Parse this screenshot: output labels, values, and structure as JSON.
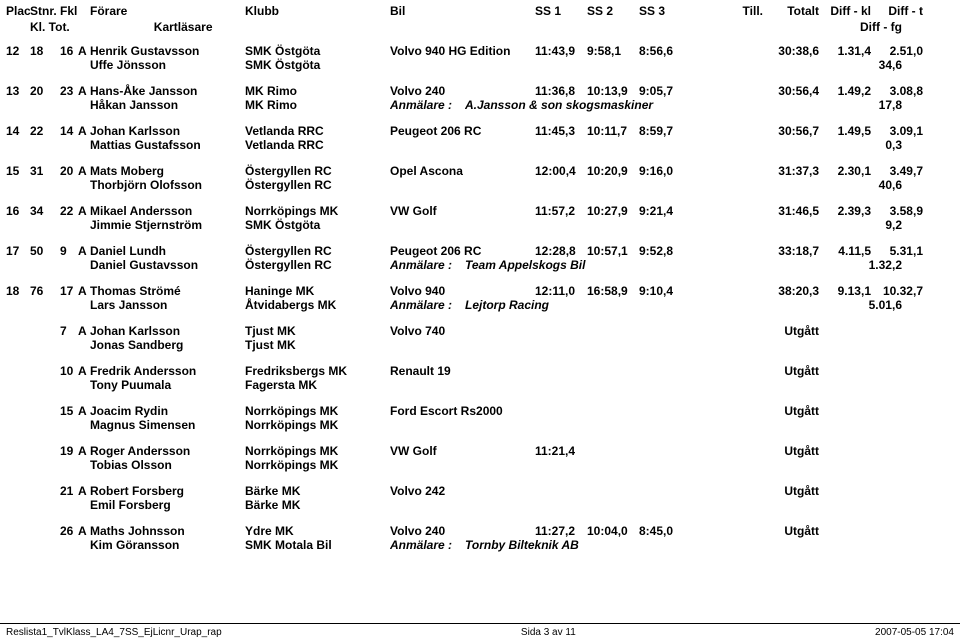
{
  "header": {
    "plac": "Plac.",
    "stnr": "Stnr.",
    "fkl": "Fkl",
    "forare": "Förare",
    "klubb": "Klubb",
    "bil": "Bil",
    "ss1": "SS 1",
    "ss2": "SS 2",
    "ss3": "SS 3",
    "till": "Till.",
    "totalt": "Totalt",
    "diffkl": "Diff - kl",
    "difft": "Diff - t",
    "kltot": "Kl. Tot.",
    "kartlasare": "Kartläsare",
    "difffg": "Diff - fg"
  },
  "rows": [
    {
      "plac": "12",
      "stnr": "18",
      "fkl": "16",
      "klass": "A",
      "forare": "Henrik Gustavsson",
      "klubb": "SMK Östgöta",
      "bil": "Volvo 940 HG Edition",
      "ss1": "11:43,9",
      "ss2": "9:58,1",
      "ss3": "8:56,6",
      "till": "",
      "totalt": "30:38,6",
      "diffkl": "1.31,4",
      "difft": "2.51,0",
      "kartlasare": "Uffe Jönsson",
      "klubb2": "SMK Östgöta",
      "anmalare_lbl": "",
      "anmalare": "",
      "difffg": "34,6"
    },
    {
      "plac": "13",
      "stnr": "20",
      "fkl": "23",
      "klass": "A",
      "forare": "Hans-Åke Jansson",
      "klubb": "MK Rimo",
      "bil": "Volvo 240",
      "ss1": "11:36,8",
      "ss2": "10:13,9",
      "ss3": "9:05,7",
      "till": "",
      "totalt": "30:56,4",
      "diffkl": "1.49,2",
      "difft": "3.08,8",
      "kartlasare": "Håkan Jansson",
      "klubb2": "MK Rimo",
      "anmalare_lbl": "Anmälare :",
      "anmalare": "A.Jansson & son skogsmaskiner",
      "difffg": "17,8"
    },
    {
      "plac": "14",
      "stnr": "22",
      "fkl": "14",
      "klass": "A",
      "forare": "Johan Karlsson",
      "klubb": "Vetlanda RRC",
      "bil": "Peugeot 206 RC",
      "ss1": "11:45,3",
      "ss2": "10:11,7",
      "ss3": "8:59,7",
      "till": "",
      "totalt": "30:56,7",
      "diffkl": "1.49,5",
      "difft": "3.09,1",
      "kartlasare": "Mattias Gustafsson",
      "klubb2": "Vetlanda RRC",
      "anmalare_lbl": "",
      "anmalare": "",
      "difffg": "0,3"
    },
    {
      "plac": "15",
      "stnr": "31",
      "fkl": "20",
      "klass": "A",
      "forare": "Mats Moberg",
      "klubb": "Östergyllen RC",
      "bil": "Opel Ascona",
      "ss1": "12:00,4",
      "ss2": "10:20,9",
      "ss3": "9:16,0",
      "till": "",
      "totalt": "31:37,3",
      "diffkl": "2.30,1",
      "difft": "3.49,7",
      "kartlasare": "Thorbjörn Olofsson",
      "klubb2": "Östergyllen RC",
      "anmalare_lbl": "",
      "anmalare": "",
      "difffg": "40,6"
    },
    {
      "plac": "16",
      "stnr": "34",
      "fkl": "22",
      "klass": "A",
      "forare": "Mikael Andersson",
      "klubb": "Norrköpings MK",
      "bil": "VW Golf",
      "ss1": "11:57,2",
      "ss2": "10:27,9",
      "ss3": "9:21,4",
      "till": "",
      "totalt": "31:46,5",
      "diffkl": "2.39,3",
      "difft": "3.58,9",
      "kartlasare": "Jimmie Stjernström",
      "klubb2": "SMK Östgöta",
      "anmalare_lbl": "",
      "anmalare": "",
      "difffg": "9,2"
    },
    {
      "plac": "17",
      "stnr": "50",
      "fkl": "9",
      "klass": "A",
      "forare": "Daniel Lundh",
      "klubb": "Östergyllen RC",
      "bil": "Peugeot 206 RC",
      "ss1": "12:28,8",
      "ss2": "10:57,1",
      "ss3": "9:52,8",
      "till": "",
      "totalt": "33:18,7",
      "diffkl": "4.11,5",
      "difft": "5.31,1",
      "kartlasare": "Daniel Gustavsson",
      "klubb2": "Östergyllen RC",
      "anmalare_lbl": "Anmälare :",
      "anmalare": "Team Appelskogs Bil",
      "difffg": "1.32,2"
    },
    {
      "plac": "18",
      "stnr": "76",
      "fkl": "17",
      "klass": "A",
      "forare": "Thomas Strömé",
      "klubb": "Haninge MK",
      "bil": "Volvo 940",
      "ss1": "12:11,0",
      "ss2": "16:58,9",
      "ss3": "9:10,4",
      "till": "",
      "totalt": "38:20,3",
      "diffkl": "9.13,1",
      "difft": "10.32,7",
      "kartlasare": "Lars Jansson",
      "klubb2": "Åtvidabergs MK",
      "anmalare_lbl": "Anmälare :",
      "anmalare": "Lejtorp Racing",
      "difffg": "5.01,6"
    },
    {
      "plac": "",
      "stnr": "",
      "fkl": "7",
      "klass": "A",
      "forare": "Johan Karlsson",
      "klubb": "Tjust MK",
      "bil": "Volvo 740",
      "ss1": "",
      "ss2": "",
      "ss3": "",
      "till": "",
      "totalt": "Utgått",
      "diffkl": "",
      "difft": "",
      "kartlasare": "Jonas Sandberg",
      "klubb2": "Tjust MK",
      "anmalare_lbl": "",
      "anmalare": "",
      "difffg": ""
    },
    {
      "plac": "",
      "stnr": "",
      "fkl": "10",
      "klass": "A",
      "forare": "Fredrik Andersson",
      "klubb": "Fredriksbergs MK",
      "bil": "Renault 19",
      "ss1": "",
      "ss2": "",
      "ss3": "",
      "till": "",
      "totalt": "Utgått",
      "diffkl": "",
      "difft": "",
      "kartlasare": "Tony Puumala",
      "klubb2": "Fagersta MK",
      "anmalare_lbl": "",
      "anmalare": "",
      "difffg": ""
    },
    {
      "plac": "",
      "stnr": "",
      "fkl": "15",
      "klass": "A",
      "forare": "Joacim Rydin",
      "klubb": "Norrköpings MK",
      "bil": "Ford Escort Rs2000",
      "ss1": "",
      "ss2": "",
      "ss3": "",
      "till": "",
      "totalt": "Utgått",
      "diffkl": "",
      "difft": "",
      "kartlasare": "Magnus Simensen",
      "klubb2": "Norrköpings MK",
      "anmalare_lbl": "",
      "anmalare": "",
      "difffg": ""
    },
    {
      "plac": "",
      "stnr": "",
      "fkl": "19",
      "klass": "A",
      "forare": "Roger Andersson",
      "klubb": "Norrköpings MK",
      "bil": "VW Golf",
      "ss1": "11:21,4",
      "ss2": "",
      "ss3": "",
      "till": "",
      "totalt": "Utgått",
      "diffkl": "",
      "difft": "",
      "kartlasare": "Tobias Olsson",
      "klubb2": "Norrköpings MK",
      "anmalare_lbl": "",
      "anmalare": "",
      "difffg": ""
    },
    {
      "plac": "",
      "stnr": "",
      "fkl": "21",
      "klass": "A",
      "forare": "Robert Forsberg",
      "klubb": "Bärke MK",
      "bil": "Volvo 242",
      "ss1": "",
      "ss2": "",
      "ss3": "",
      "till": "",
      "totalt": "Utgått",
      "diffkl": "",
      "difft": "",
      "kartlasare": "Emil Forsberg",
      "klubb2": "Bärke MK",
      "anmalare_lbl": "",
      "anmalare": "",
      "difffg": ""
    },
    {
      "plac": "",
      "stnr": "",
      "fkl": "26",
      "klass": "A",
      "forare": "Maths Johnsson",
      "klubb": "Ydre MK",
      "bil": "Volvo 240",
      "ss1": "11:27,2",
      "ss2": "10:04,0",
      "ss3": "8:45,0",
      "till": "",
      "totalt": "Utgått",
      "diffkl": "",
      "difft": "",
      "kartlasare": "Kim Göransson",
      "klubb2": "SMK Motala Bil",
      "anmalare_lbl": "Anmälare :",
      "anmalare": "Tornby Bilteknik AB",
      "difffg": ""
    }
  ],
  "footer": {
    "left": "Reslista1_TvlKlass_LA4_7SS_EjLicnr_Urap_rap",
    "center": "Sida 3 av 11",
    "right": "2007-05-05 17:04"
  }
}
